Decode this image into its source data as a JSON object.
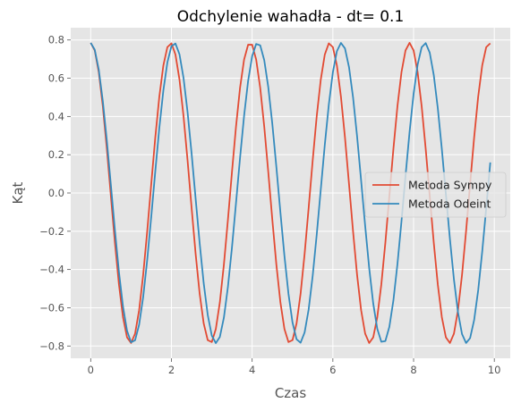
{
  "chart_data": {
    "type": "line",
    "title": "Odchylenie wahadła - dt= 0.1",
    "xlabel": "Czas",
    "ylabel": "Kąt",
    "xlim": [
      -0.495,
      10.395
    ],
    "ylim": [
      -0.8642,
      0.8642
    ],
    "xticks": [
      0,
      2,
      4,
      6,
      8,
      10
    ],
    "xtick_labels": [
      "0",
      "2",
      "4",
      "6",
      "8",
      "10"
    ],
    "yticks": [
      -0.8,
      -0.6,
      -0.4,
      -0.2,
      0.0,
      0.2,
      0.4,
      0.6,
      0.8
    ],
    "ytick_labels": [
      "−0.8",
      "−0.6",
      "−0.4",
      "−0.2",
      "0.0",
      "0.2",
      "0.4",
      "0.6",
      "0.8"
    ],
    "grid": true,
    "legend_position": "center-right",
    "x": {
      "start": 0,
      "step": 0.1,
      "count": 100
    },
    "series": [
      {
        "name": "Metoda Sympy",
        "color": "#E24A33",
        "amplitude": 0.785,
        "period": 1.975
      },
      {
        "name": "Metoda Odeint",
        "color": "#348ABD",
        "amplitude": 0.785,
        "period": 2.07
      }
    ]
  }
}
